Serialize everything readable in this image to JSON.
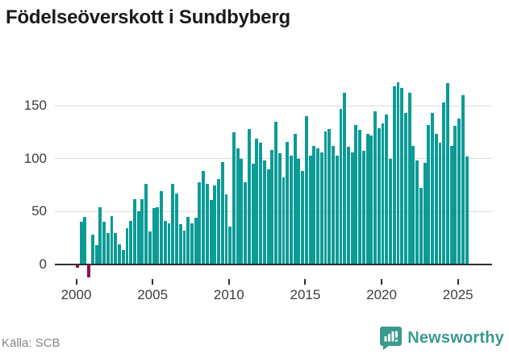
{
  "title": "Födelseöverskott i Sundbyberg",
  "source": "Källa: SCB",
  "logo": {
    "text": "Newsworthy",
    "icon": "newsworthy-speech-bubble-chart-icon"
  },
  "colors": {
    "bar_positive": "#0d9b96",
    "bar_negative": "#96104e",
    "grid": "#dcdcdc",
    "axis": "#2f2f2f",
    "tick_text": "#3d3d3d",
    "muted_text": "#878787",
    "logo_teal": "#3a9a8e",
    "title_text": "#1a1a1a",
    "background": "#ffffff"
  },
  "chart_data": {
    "type": "bar",
    "title": "Födelseöverskott i Sundbyberg",
    "xlabel": "",
    "ylabel": "",
    "frequency": "quarterly",
    "start_period": "2000 Q1",
    "end_period": "2025 Q3",
    "grid": "horizontal",
    "legend": "none",
    "y_ticks": [
      0,
      50,
      100,
      150
    ],
    "ylim": [
      -20,
      180
    ],
    "x_tick_years": [
      2000,
      2005,
      2010,
      2015,
      2020,
      2025
    ],
    "negative_values_highlighted": true,
    "values": [
      -3,
      40,
      45,
      -12,
      28,
      18,
      54,
      40,
      30,
      46,
      30,
      19,
      14,
      34,
      41,
      62,
      50,
      62,
      76,
      31,
      53,
      54,
      69,
      41,
      39,
      76,
      67,
      38,
      32,
      45,
      39,
      44,
      78,
      88,
      76,
      61,
      75,
      81,
      97,
      66,
      36,
      125,
      110,
      100,
      78,
      128,
      95,
      119,
      115,
      98,
      90,
      108,
      135,
      105,
      82,
      116,
      103,
      123,
      100,
      88,
      140,
      103,
      112,
      110,
      106,
      126,
      128,
      112,
      103,
      147,
      162,
      111,
      106,
      132,
      127,
      107,
      123,
      122,
      145,
      129,
      133,
      142,
      100,
      168,
      172,
      167,
      143,
      162,
      112,
      98,
      72,
      96,
      132,
      143,
      123,
      115,
      153,
      171,
      112,
      131,
      138,
      160,
      102
    ]
  }
}
